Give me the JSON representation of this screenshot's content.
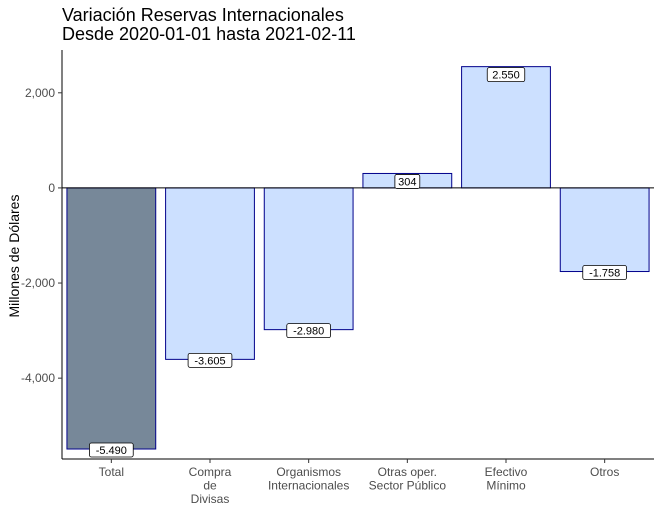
{
  "chart_data": {
    "type": "bar",
    "title": "Variación Reservas Internacionales",
    "subtitle": "Desde 2020-01-01 hasta 2021-02-11",
    "xlabel": "",
    "ylabel": "Millones de Dólares",
    "categories": [
      [
        "Total"
      ],
      [
        "Compra",
        "de",
        "Divisas"
      ],
      [
        "Organismos",
        "Internacionales"
      ],
      [
        "Otras oper.",
        "Sector Público"
      ],
      [
        "Efectivo",
        "Mínimo"
      ],
      [
        "Otros"
      ]
    ],
    "values": [
      -5490,
      -3605,
      -2980,
      304,
      2550,
      -1758
    ],
    "value_labels": [
      "-5.490",
      "-3.605",
      "-2.980",
      "304",
      "2.550",
      "-1.758"
    ],
    "yticks": [
      -4000,
      -2000,
      0,
      2000
    ],
    "ytick_labels": [
      "-4,000",
      "-2,000",
      "0",
      "2,000"
    ],
    "ylim": [
      -5700,
      2900
    ],
    "grid": false,
    "colors": {
      "highlight_fill": "#778899",
      "bar_fill": "#cce0ff",
      "bar_stroke": "#00008b",
      "zero_line": "#000000",
      "axis": "#000000"
    }
  }
}
